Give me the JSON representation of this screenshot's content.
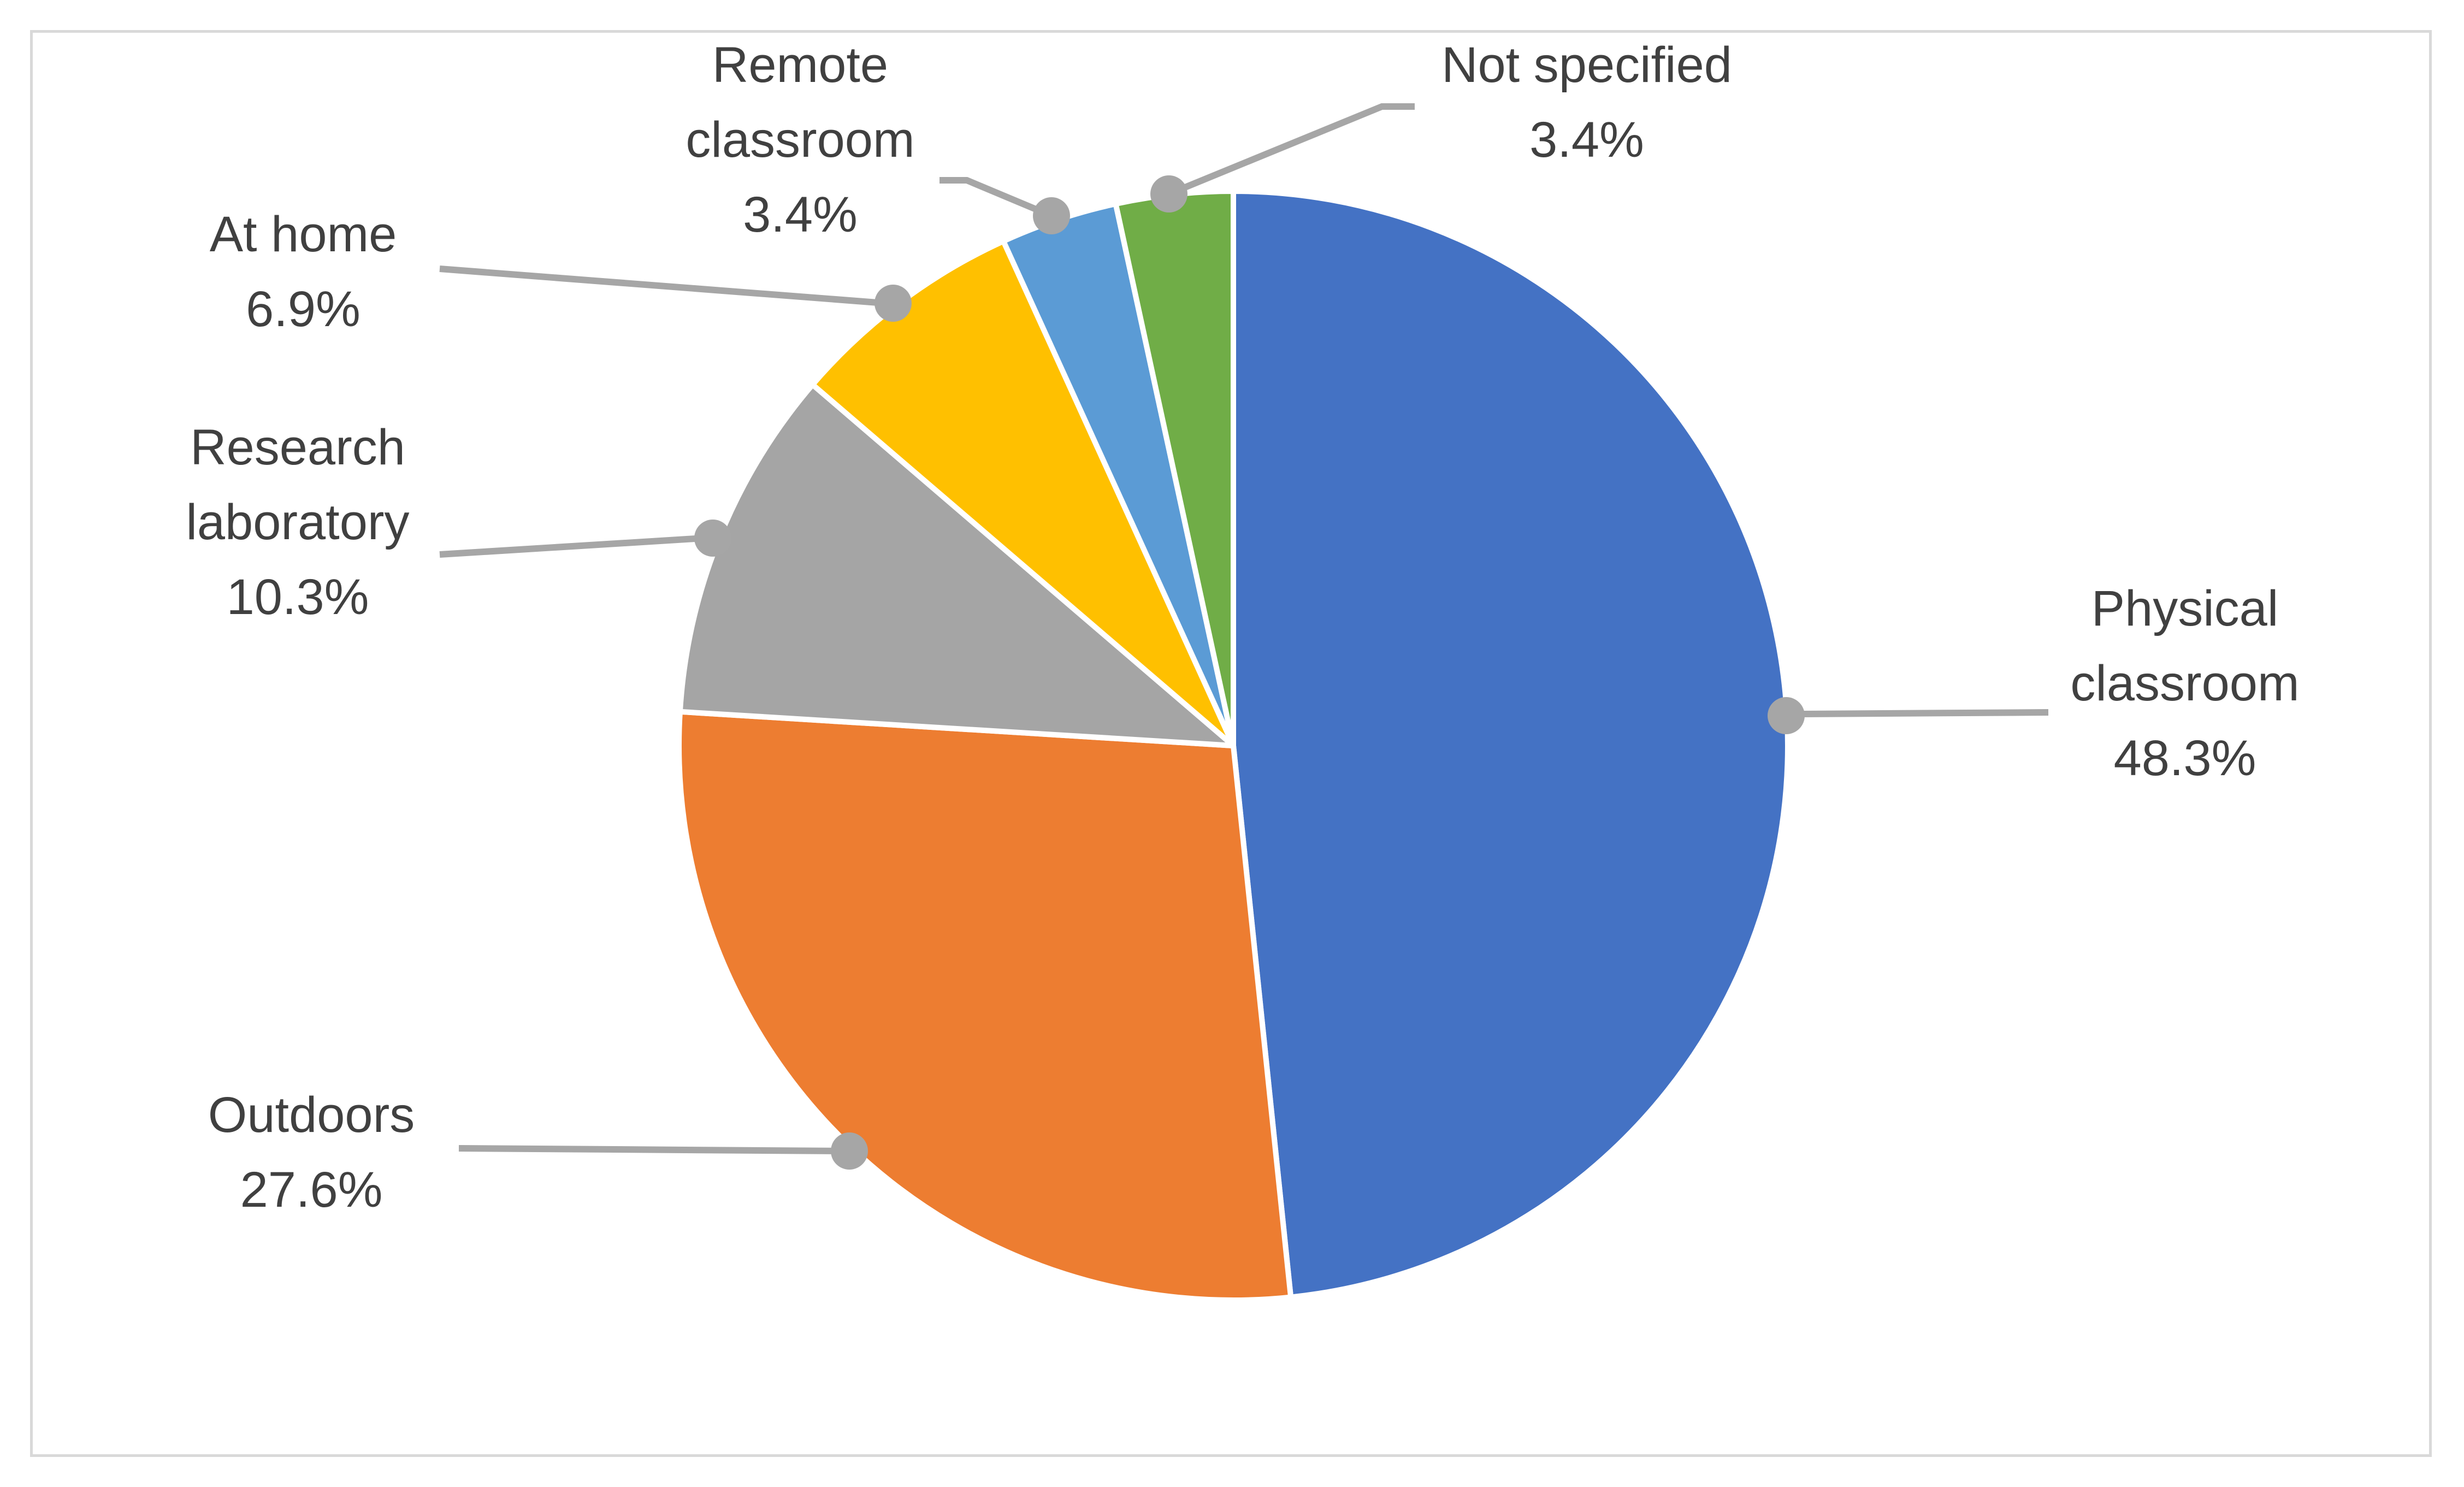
{
  "chart_data": {
    "type": "pie",
    "title": "",
    "start_angle_deg": 0,
    "direction": "clockwise",
    "slice_border_color": "#ffffff",
    "leader_color": "#a6a6a6",
    "slices": [
      {
        "label": [
          "Physical",
          "classroom"
        ],
        "value": 48.3,
        "value_label": "48.3%",
        "color": "#4472c4"
      },
      {
        "label": [
          "Outdoors"
        ],
        "value": 27.6,
        "value_label": "27.6%",
        "color": "#ed7d31"
      },
      {
        "label": [
          "Research",
          "laboratory"
        ],
        "value": 10.3,
        "value_label": "10.3%",
        "color": "#a5a5a5"
      },
      {
        "label": [
          "At home"
        ],
        "value": 6.9,
        "value_label": "6.9%",
        "color": "#ffc000"
      },
      {
        "label": [
          "Remote",
          "classroom"
        ],
        "value": 3.4,
        "value_label": "3.4%",
        "color": "#5b9bd5"
      },
      {
        "label": [
          "Not specified"
        ],
        "value": 3.4,
        "value_label": "3.4%",
        "color": "#70ad47"
      }
    ]
  }
}
